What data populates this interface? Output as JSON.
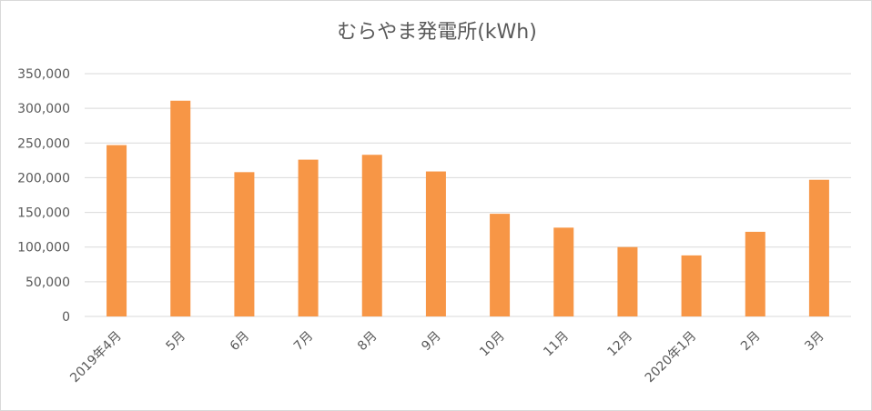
{
  "chart_data": {
    "type": "bar",
    "title": "むらやま発電所(kWh)",
    "xlabel": "",
    "ylabel": "",
    "categories": [
      "2019年4月",
      "5月",
      "6月",
      "7月",
      "8月",
      "9月",
      "10月",
      "11月",
      "12月",
      "2020年1月",
      "2月",
      "3月"
    ],
    "values": [
      247000,
      311000,
      208000,
      226000,
      233000,
      209000,
      148000,
      128000,
      100000,
      88000,
      122000,
      197000
    ],
    "ylim": [
      0,
      350000
    ],
    "yticks": [
      0,
      50000,
      100000,
      150000,
      200000,
      250000,
      300000,
      350000
    ],
    "ytick_labels": [
      "0",
      "50,000",
      "100,000",
      "150,000",
      "200,000",
      "250,000",
      "300,000",
      "350,000"
    ],
    "grid": true,
    "legend": "none",
    "bar_color": "#f79646",
    "grid_color": "#d9d9d9"
  }
}
